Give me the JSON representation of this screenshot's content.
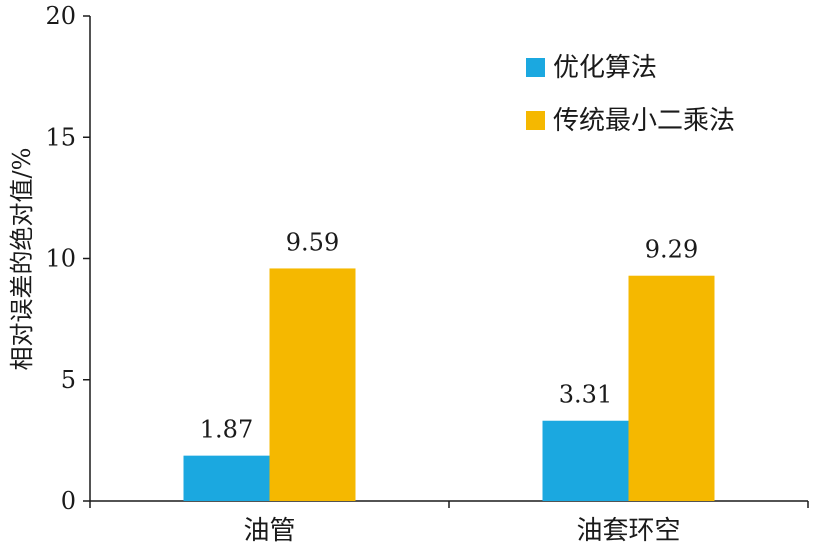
{
  "chart_data": {
    "type": "bar",
    "title": "",
    "xlabel": "",
    "ylabel": "相对误差的绝对值/%",
    "categories": [
      "油管",
      "油套环空"
    ],
    "series": [
      {
        "name": "优化算法",
        "values": [
          1.87,
          3.31
        ],
        "color": "#1ba8e0"
      },
      {
        "name": "传统最小二乘法",
        "values": [
          9.59,
          9.29
        ],
        "color": "#f5b800"
      }
    ],
    "ylim": [
      0,
      20
    ],
    "yticks": [
      0,
      5,
      10,
      15,
      20
    ],
    "grid": false,
    "legend_position": "top-right",
    "data_labels": true
  }
}
